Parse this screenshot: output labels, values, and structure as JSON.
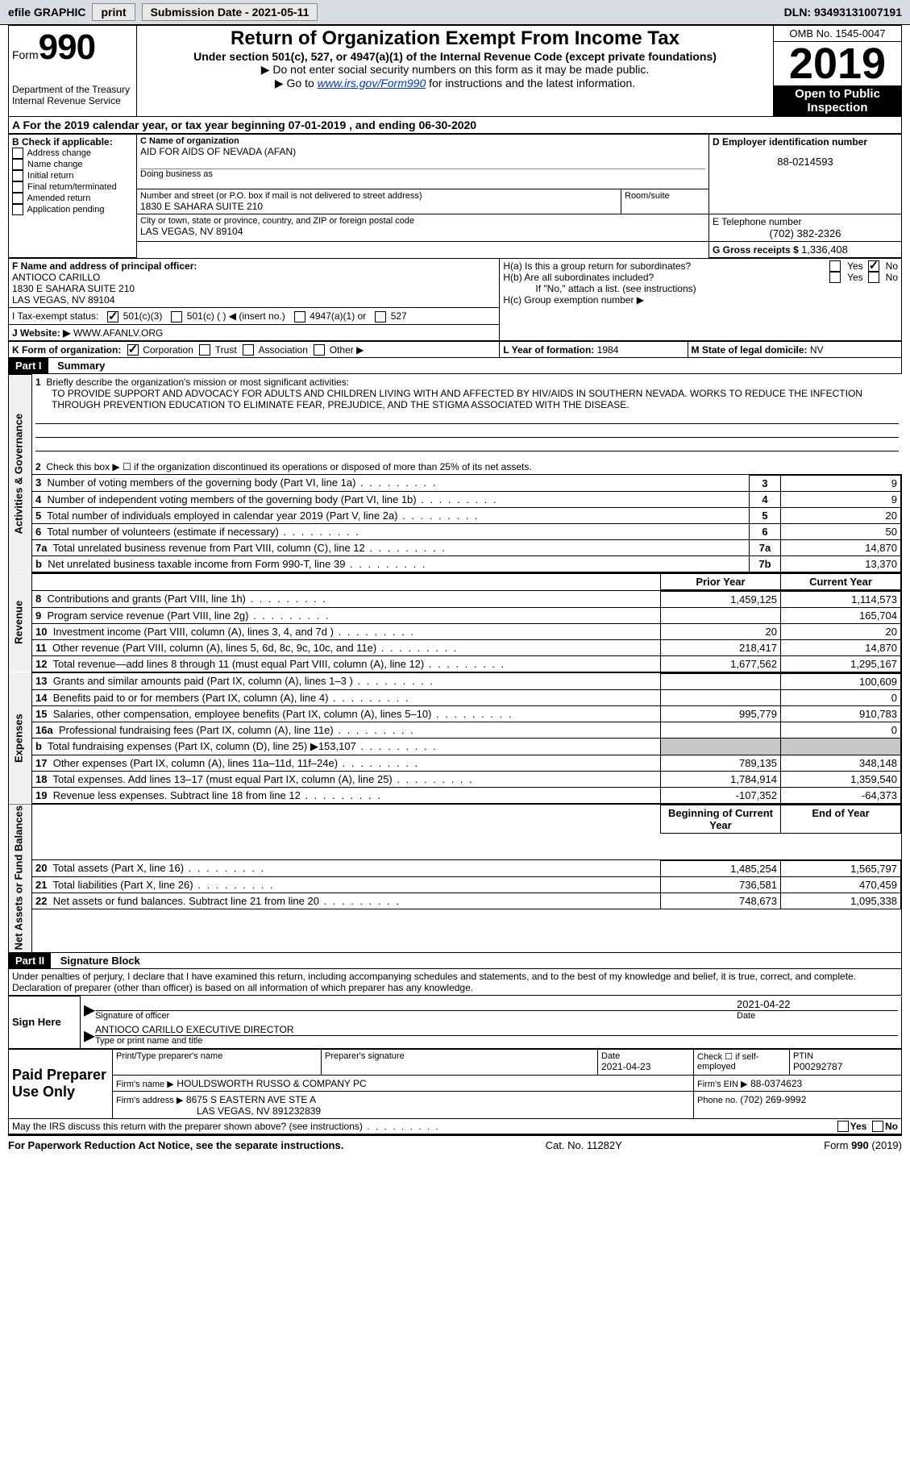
{
  "topbar": {
    "efile": "efile GRAPHIC",
    "print": "print",
    "submission_label": "Submission Date - 2021-05-11",
    "dln": "DLN: 93493131007191"
  },
  "header": {
    "form_prefix": "Form",
    "form_number": "990",
    "dept1": "Department of the Treasury",
    "dept2": "Internal Revenue Service",
    "title": "Return of Organization Exempt From Income Tax",
    "subtitle": "Under section 501(c), 527, or 4947(a)(1) of the Internal Revenue Code (except private foundations)",
    "notice1": "▶ Do not enter social security numbers on this form as it may be made public.",
    "notice2_prefix": "▶ Go to ",
    "notice2_link": "www.irs.gov/Form990",
    "notice2_suffix": " for instructions and the latest information.",
    "omb": "OMB No. 1545-0047",
    "year": "2019",
    "inspect1": "Open to Public",
    "inspect2": "Inspection"
  },
  "period": {
    "label_a": "A For the 2019 calendar year, or tax year beginning ",
    "begin": "07-01-2019",
    "label_mid": " , and ending ",
    "end": "06-30-2020"
  },
  "boxB": {
    "header": "B Check if applicable:",
    "items": [
      "Address change",
      "Name change",
      "Initial return",
      "Final return/terminated",
      "Amended return",
      "Application pending"
    ]
  },
  "boxC": {
    "name_label": "C Name of organization",
    "name": "AID FOR AIDS OF NEVADA (AFAN)",
    "dba_label": "Doing business as",
    "dba": "",
    "addr_label": "Number and street (or P.O. box if mail is not delivered to street address)",
    "room_label": "Room/suite",
    "addr": "1830 E SAHARA SUITE 210",
    "city_label": "City or town, state or province, country, and ZIP or foreign postal code",
    "city": "LAS VEGAS, NV  89104"
  },
  "boxD": {
    "label": "D Employer identification number",
    "value": "88-0214593"
  },
  "boxE": {
    "label": "E Telephone number",
    "value": "(702) 382-2326"
  },
  "boxG": {
    "label": "G Gross receipts $ ",
    "value": "1,336,408"
  },
  "boxF": {
    "label": "F Name and address of principal officer:",
    "name": "ANTIOCO CARILLO",
    "addr": "1830 E SAHARA SUITE 210",
    "city": "LAS VEGAS, NV  89104"
  },
  "boxH": {
    "ha": "H(a)  Is this a group return for subordinates?",
    "hb": "H(b)  Are all subordinates included?",
    "hb_note": "If \"No,\" attach a list. (see instructions)",
    "hc": "H(c)  Group exemption number ▶",
    "yes": "Yes",
    "no": "No"
  },
  "boxI": {
    "label": "I     Tax-exempt status:",
    "opts": [
      "501(c)(3)",
      "501(c) (  ) ◀ (insert no.)",
      "4947(a)(1) or",
      "527"
    ]
  },
  "boxJ": {
    "label": "J    Website: ▶",
    "value": "WWW.AFANLV.ORG"
  },
  "boxK": {
    "label": "K Form of organization:",
    "opts": [
      "Corporation",
      "Trust",
      "Association",
      "Other ▶"
    ]
  },
  "boxL": {
    "label": "L Year of formation: ",
    "value": "1984"
  },
  "boxM": {
    "label": "M State of legal domicile: ",
    "value": "NV"
  },
  "part1": {
    "num": "Part I",
    "title": "Summary",
    "line1_label": "Briefly describe the organization's mission or most significant activities:",
    "mission": "TO PROVIDE SUPPORT AND ADVOCACY FOR ADULTS AND CHILDREN LIVING WITH AND AFFECTED BY HIV/AIDS IN SOUTHERN NEVADA. WORKS TO REDUCE THE INFECTION THROUGH PREVENTION EDUCATION TO ELIMINATE FEAR, PREJUDICE, AND THE STIGMA ASSOCIATED WITH THE DISEASE.",
    "line2": "Check this box ▶ ☐  if the organization discontinued its operations or disposed of more than 25% of its net assets.",
    "rows_ag": [
      {
        "n": "3",
        "label": "Number of voting members of the governing body (Part VI, line 1a)",
        "box": "3",
        "val": "9"
      },
      {
        "n": "4",
        "label": "Number of independent voting members of the governing body (Part VI, line 1b)",
        "box": "4",
        "val": "9"
      },
      {
        "n": "5",
        "label": "Total number of individuals employed in calendar year 2019 (Part V, line 2a)",
        "box": "5",
        "val": "20"
      },
      {
        "n": "6",
        "label": "Total number of volunteers (estimate if necessary)",
        "box": "6",
        "val": "50"
      },
      {
        "n": "7a",
        "label": "Total unrelated business revenue from Part VIII, column (C), line 12",
        "box": "7a",
        "val": "14,870"
      },
      {
        "n": "b",
        "label": "Net unrelated business taxable income from Form 990-T, line 39",
        "box": "7b",
        "val": "13,370"
      }
    ],
    "col_prior": "Prior Year",
    "col_current": "Current Year",
    "revenue": [
      {
        "n": "8",
        "label": "Contributions and grants (Part VIII, line 1h)",
        "p": "1,459,125",
        "c": "1,114,573"
      },
      {
        "n": "9",
        "label": "Program service revenue (Part VIII, line 2g)",
        "p": "",
        "c": "165,704"
      },
      {
        "n": "10",
        "label": "Investment income (Part VIII, column (A), lines 3, 4, and 7d )",
        "p": "20",
        "c": "20"
      },
      {
        "n": "11",
        "label": "Other revenue (Part VIII, column (A), lines 5, 6d, 8c, 9c, 10c, and 11e)",
        "p": "218,417",
        "c": "14,870"
      },
      {
        "n": "12",
        "label": "Total revenue—add lines 8 through 11 (must equal Part VIII, column (A), line 12)",
        "p": "1,677,562",
        "c": "1,295,167"
      }
    ],
    "expenses": [
      {
        "n": "13",
        "label": "Grants and similar amounts paid (Part IX, column (A), lines 1–3 )",
        "p": "",
        "c": "100,609"
      },
      {
        "n": "14",
        "label": "Benefits paid to or for members (Part IX, column (A), line 4)",
        "p": "",
        "c": "0"
      },
      {
        "n": "15",
        "label": "Salaries, other compensation, employee benefits (Part IX, column (A), lines 5–10)",
        "p": "995,779",
        "c": "910,783"
      },
      {
        "n": "16a",
        "label": "Professional fundraising fees (Part IX, column (A), line 11e)",
        "p": "",
        "c": "0"
      },
      {
        "n": "b",
        "label": "Total fundraising expenses (Part IX, column (D), line 25) ▶153,107",
        "p": "grey",
        "c": "grey"
      },
      {
        "n": "17",
        "label": "Other expenses (Part IX, column (A), lines 11a–11d, 11f–24e)",
        "p": "789,135",
        "c": "348,148"
      },
      {
        "n": "18",
        "label": "Total expenses. Add lines 13–17 (must equal Part IX, column (A), line 25)",
        "p": "1,784,914",
        "c": "1,359,540"
      },
      {
        "n": "19",
        "label": "Revenue less expenses. Subtract line 18 from line 12",
        "p": "-107,352",
        "c": "-64,373"
      }
    ],
    "col_boy": "Beginning of Current Year",
    "col_eoy": "End of Year",
    "netassets": [
      {
        "n": "20",
        "label": "Total assets (Part X, line 16)",
        "p": "1,485,254",
        "c": "1,565,797"
      },
      {
        "n": "21",
        "label": "Total liabilities (Part X, line 26)",
        "p": "736,581",
        "c": "470,459"
      },
      {
        "n": "22",
        "label": "Net assets or fund balances. Subtract line 21 from line 20",
        "p": "748,673",
        "c": "1,095,338"
      }
    ],
    "vlabels": {
      "ag": "Activities & Governance",
      "rev": "Revenue",
      "exp": "Expenses",
      "na": "Net Assets or Fund Balances"
    }
  },
  "part2": {
    "num": "Part II",
    "title": "Signature Block",
    "perjury": "Under penalties of perjury, I declare that I have examined this return, including accompanying schedules and statements, and to the best of my knowledge and belief, it is true, correct, and complete. Declaration of preparer (other than officer) is based on all information of which preparer has any knowledge.",
    "sign_here": "Sign Here",
    "sig_label1": "Signature of officer",
    "sig_date": "2021-04-22",
    "sig_date_label": "Date",
    "sig_name": "ANTIOCO CARILLO  EXECUTIVE DIRECTOR",
    "sig_label2": "Type or print name and title",
    "paid": "Paid Preparer Use Only",
    "prep_name_label": "Print/Type preparer's name",
    "prep_sig_label": "Preparer's signature",
    "prep_date_label": "Date",
    "prep_date": "2021-04-23",
    "check_self": "Check ☐ if self-employed",
    "ptin_label": "PTIN",
    "ptin": "P00292787",
    "firm_name_label": "Firm's name   ▶",
    "firm_name": "HOULDSWORTH RUSSO & COMPANY PC",
    "firm_ein_label": "Firm's EIN ▶",
    "firm_ein": "88-0374623",
    "firm_addr_label": "Firm's address ▶",
    "firm_addr1": "8675 S EASTERN AVE STE A",
    "firm_addr2": "LAS VEGAS, NV  891232839",
    "firm_phone_label": "Phone no. ",
    "firm_phone": "(702) 269-9992",
    "discuss": "May the IRS discuss this return with the preparer shown above? (see instructions)"
  },
  "footer": {
    "pra": "For Paperwork Reduction Act Notice, see the separate instructions.",
    "cat": "Cat. No. 11282Y",
    "form": "Form 990 (2019)"
  }
}
